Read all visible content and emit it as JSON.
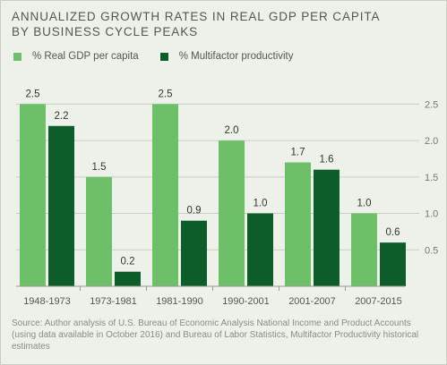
{
  "chart_data": {
    "type": "bar",
    "title": [
      "ANNUALIZED GROWTH RATES IN REAL GDP PER CAPITA",
      "BY BUSINESS CYCLE PEAKS"
    ],
    "categories": [
      "1948-1973",
      "1973-1981",
      "1981-1990",
      "1990-2001",
      "2001-2007",
      "2007-2015"
    ],
    "series": [
      {
        "name": "% Real GDP per capita",
        "color": "#6dc067",
        "values": [
          2.5,
          1.5,
          2.5,
          2.0,
          1.7,
          1.0
        ]
      },
      {
        "name": "% Multifactor productivity",
        "color": "#0d5d2a",
        "values": [
          2.2,
          0.2,
          0.9,
          1.0,
          1.6,
          0.6
        ]
      }
    ],
    "data_labels": [
      [
        "2.5",
        "1.5",
        "2.5",
        "2.0",
        "1.7",
        "1.0"
      ],
      [
        "2.2",
        "0.2",
        "0.9",
        "1.0",
        "1.6",
        "0.6"
      ]
    ],
    "yticks": [
      "0.5",
      "1.0",
      "1.5",
      "2.0",
      "2.5"
    ],
    "ytick_values": [
      0.5,
      1.0,
      1.5,
      2.0,
      2.5
    ],
    "ylim": [
      0,
      2.75
    ],
    "y_axis_position": "right",
    "grid": true,
    "legend_position": "top-left",
    "xlabel": "",
    "ylabel": ""
  },
  "source": "Source: Author analysis of U.S. Bureau of Economic Analysis National Income and Product Accounts (using data available in October 2016) and Bureau of Labor Statistics, Multifactor Productivity historical estimates"
}
